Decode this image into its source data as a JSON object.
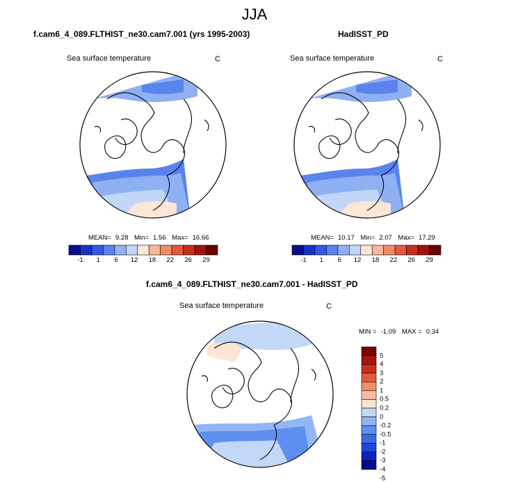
{
  "season": "JJA",
  "colors": {
    "abs_scale": [
      "#08108a",
      "#1833c8",
      "#3358e6",
      "#5a83ee",
      "#8fb0f3",
      "#c2d6f8",
      "#fce6d8",
      "#f7b99a",
      "#f08b6b",
      "#e45a3c",
      "#c92d1b",
      "#a0140d",
      "#6a0404"
    ],
    "diff_scale": [
      "#070a8a",
      "#0c22c0",
      "#1f45dc",
      "#3a68e8",
      "#5e8ef0",
      "#92b5f4",
      "#c3d7f7",
      "#fde4d2",
      "#f8bea4",
      "#f08d6c",
      "#e45b3b",
      "#cc2c1a",
      "#a81510",
      "#7a0606"
    ]
  },
  "panels": [
    {
      "title": "f.cam6_4_089.FLTHIST_ne30.cam7.001 (yrs 1995-2003)",
      "variable": "Sea surface temperature",
      "units": "C",
      "stats": {
        "mean_label": "MEAN=",
        "mean": "9.28",
        "min_label": "Min=",
        "min": "1.56",
        "max_label": "Max=",
        "max": "16.66"
      }
    },
    {
      "title": "HadISST_PD",
      "variable": "Sea surface temperature",
      "units": "C",
      "stats": {
        "mean_label": "MEAN=",
        "mean": "10.17",
        "min_label": "Min=",
        "min": "2.07",
        "max_label": "Max=",
        "max": "17.29"
      }
    },
    {
      "title": "f.cam6_4_089.FLTHIST_ne30.cam7.001 - HadISST_PD",
      "variable": "Sea surface temperature",
      "units": "C",
      "stats": {
        "min_label": "MIN =",
        "min": "-1.09",
        "max_label": "MAX =",
        "max": "0.34"
      }
    }
  ],
  "chart_data": [
    {
      "type": "heatmap",
      "title": "f.cam6_4_089.FLTHIST_ne30.cam7.001 (yrs 1995-2003)",
      "subtitle": "Sea surface temperature",
      "units": "C",
      "projection": "north polar stereographic",
      "colorbar_ticks": [
        "-1",
        "1",
        "6",
        "12",
        "18",
        "22",
        "26",
        "29"
      ],
      "mean": 9.28,
      "min": 1.56,
      "max": 16.66
    },
    {
      "type": "heatmap",
      "title": "HadISST_PD",
      "subtitle": "Sea surface temperature",
      "units": "C",
      "projection": "north polar stereographic",
      "colorbar_ticks": [
        "-1",
        "1",
        "6",
        "12",
        "18",
        "22",
        "26",
        "29"
      ],
      "mean": 10.17,
      "min": 2.07,
      "max": 17.29
    },
    {
      "type": "heatmap",
      "title": "f.cam6_4_089.FLTHIST_ne30.cam7.001 - HadISST_PD",
      "subtitle": "Sea surface temperature",
      "units": "C",
      "projection": "north polar stereographic",
      "colorbar_ticks": [
        "5",
        "4",
        "3",
        "2",
        "1",
        "0.5",
        "0.2",
        "0",
        "-0.2",
        "-0.5",
        "-1",
        "-2",
        "-3",
        "-4",
        "-5"
      ],
      "min": -1.09,
      "max": 0.34
    }
  ]
}
